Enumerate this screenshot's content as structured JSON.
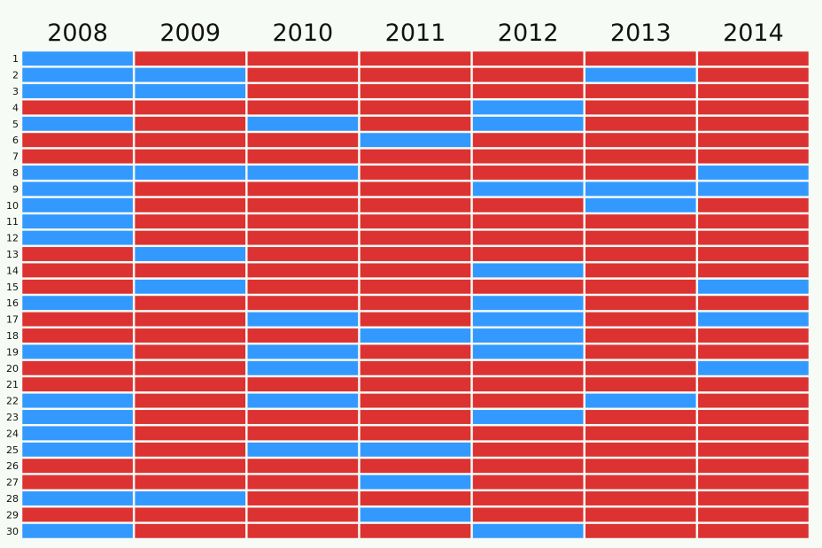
{
  "chart_data": {
    "type": "heatmap",
    "title": "",
    "xlabel": "",
    "ylabel": "",
    "columns": [
      "2008",
      "2009",
      "2010",
      "2011",
      "2012",
      "2013",
      "2014"
    ],
    "rows": [
      "1",
      "2",
      "3",
      "4",
      "5",
      "6",
      "7",
      "8",
      "9",
      "10",
      "11",
      "12",
      "13",
      "14",
      "15",
      "16",
      "17",
      "18",
      "19",
      "20",
      "21",
      "22",
      "23",
      "24",
      "25",
      "26",
      "27",
      "28",
      "29",
      "30"
    ],
    "legend": [],
    "colors": {
      "R": "#dc3232",
      "B": "#3399ff"
    },
    "values": [
      [
        "B",
        "R",
        "R",
        "R",
        "R",
        "R",
        "R"
      ],
      [
        "B",
        "B",
        "R",
        "R",
        "R",
        "B",
        "R"
      ],
      [
        "B",
        "B",
        "R",
        "R",
        "R",
        "R",
        "R"
      ],
      [
        "R",
        "R",
        "R",
        "R",
        "B",
        "R",
        "R"
      ],
      [
        "B",
        "R",
        "B",
        "R",
        "B",
        "R",
        "R"
      ],
      [
        "R",
        "R",
        "R",
        "B",
        "R",
        "R",
        "R"
      ],
      [
        "R",
        "R",
        "R",
        "R",
        "R",
        "R",
        "R"
      ],
      [
        "B",
        "B",
        "B",
        "R",
        "R",
        "R",
        "B"
      ],
      [
        "B",
        "R",
        "R",
        "R",
        "B",
        "B",
        "B"
      ],
      [
        "B",
        "R",
        "R",
        "R",
        "R",
        "B",
        "R"
      ],
      [
        "B",
        "R",
        "R",
        "R",
        "R",
        "R",
        "R"
      ],
      [
        "B",
        "R",
        "R",
        "R",
        "R",
        "R",
        "R"
      ],
      [
        "R",
        "B",
        "R",
        "R",
        "R",
        "R",
        "R"
      ],
      [
        "R",
        "R",
        "R",
        "R",
        "B",
        "R",
        "R"
      ],
      [
        "R",
        "B",
        "R",
        "R",
        "R",
        "R",
        "B"
      ],
      [
        "B",
        "R",
        "R",
        "R",
        "B",
        "R",
        "R"
      ],
      [
        "R",
        "R",
        "B",
        "R",
        "B",
        "R",
        "B"
      ],
      [
        "R",
        "R",
        "R",
        "B",
        "B",
        "R",
        "R"
      ],
      [
        "B",
        "R",
        "B",
        "R",
        "B",
        "R",
        "R"
      ],
      [
        "R",
        "R",
        "B",
        "R",
        "R",
        "R",
        "B"
      ],
      [
        "R",
        "R",
        "R",
        "R",
        "R",
        "R",
        "R"
      ],
      [
        "B",
        "R",
        "B",
        "R",
        "R",
        "B",
        "R"
      ],
      [
        "B",
        "R",
        "R",
        "R",
        "B",
        "R",
        "R"
      ],
      [
        "B",
        "R",
        "R",
        "R",
        "R",
        "R",
        "R"
      ],
      [
        "B",
        "R",
        "B",
        "B",
        "R",
        "R",
        "R"
      ],
      [
        "R",
        "R",
        "R",
        "R",
        "R",
        "R",
        "R"
      ],
      [
        "R",
        "R",
        "R",
        "B",
        "R",
        "R",
        "R"
      ],
      [
        "B",
        "B",
        "R",
        "R",
        "R",
        "R",
        "R"
      ],
      [
        "R",
        "R",
        "R",
        "B",
        "R",
        "R",
        "R"
      ],
      [
        "B",
        "R",
        "R",
        "R",
        "B",
        "R",
        "R"
      ]
    ]
  }
}
